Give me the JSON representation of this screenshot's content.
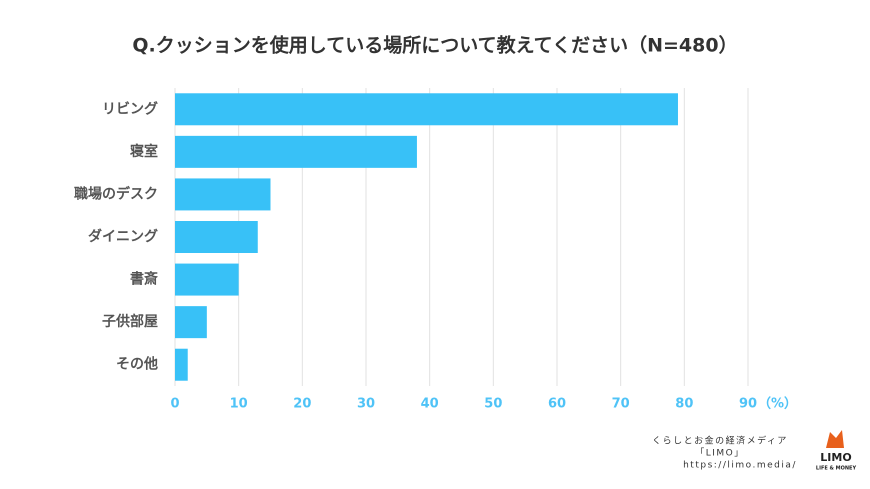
{
  "chart_data": {
    "type": "bar",
    "orientation": "horizontal",
    "title": "Q.クッションを使用している場所について教えてください（N=480）",
    "categories": [
      "リビング",
      "寝室",
      "職場のデスク",
      "ダイニング",
      "書斎",
      "子供部屋",
      "その他"
    ],
    "values": [
      79,
      38,
      15,
      13,
      10,
      5,
      2
    ],
    "color": "#38c1f7",
    "xlim": [
      0,
      90
    ],
    "xticks": [
      0,
      10,
      20,
      30,
      40,
      50,
      60,
      70,
      80,
      90
    ],
    "x_unit": "（%）",
    "grid": true
  },
  "footer": {
    "tagline": "くらしとお金の経済メディア",
    "brand": "「LIMO」",
    "url": "https://limo.media/",
    "logo": "LIMO",
    "logo_sub": "LIFE & MONEY"
  }
}
